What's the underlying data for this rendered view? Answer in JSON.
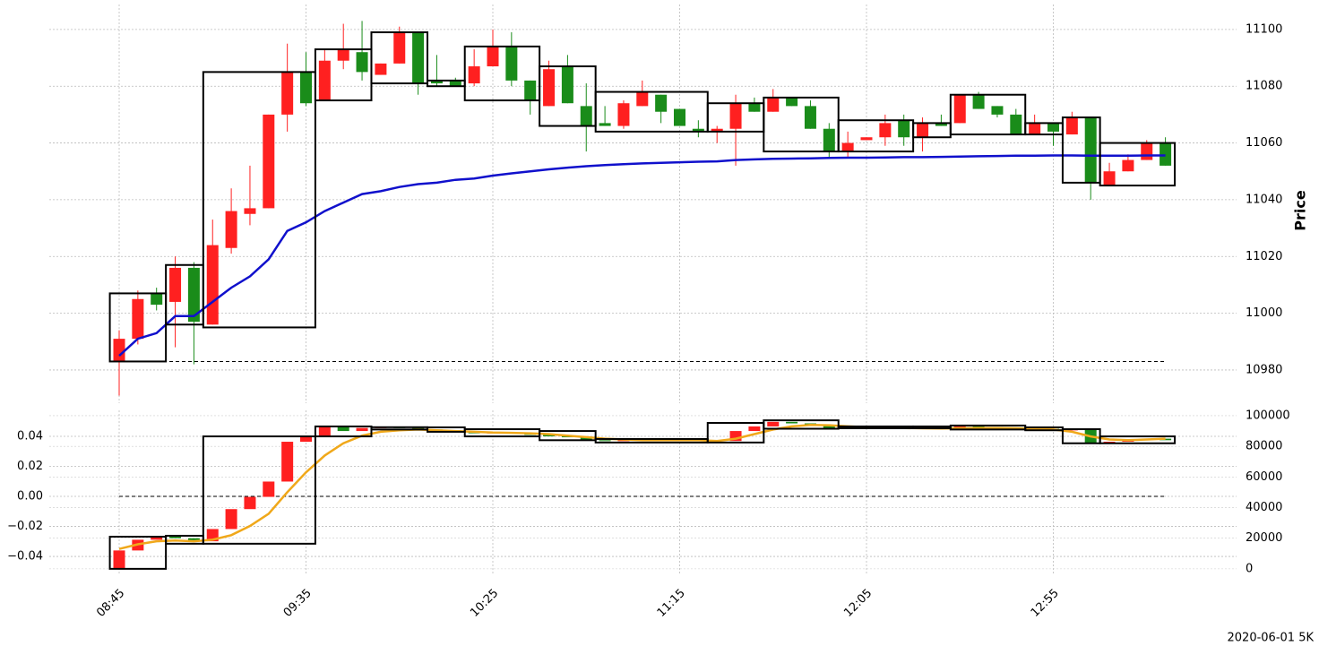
{
  "chart_data": [
    {
      "type": "candlestick",
      "y_label": "Price",
      "y_axis_side": "right",
      "grid": true,
      "up_color": "#ff2020",
      "down_color": "#1a8c1a",
      "box_color": "#000000",
      "ylim": [
        10968.3,
        11108.8
      ],
      "yticks": [
        10980,
        11000,
        11020,
        11040,
        11060,
        11080,
        11100
      ],
      "reference_line": 10983,
      "open": [
        10983,
        10991,
        11007,
        11004,
        11016,
        10996,
        11023,
        11035,
        11037,
        11070,
        11085,
        11075,
        11089,
        11092,
        11084,
        11088,
        11099,
        11082,
        11082,
        11081,
        11087,
        11094,
        11082,
        11073,
        11087,
        11073,
        11067,
        11066,
        11073,
        11077,
        11072,
        11065,
        11064,
        11065,
        11074,
        11071,
        11076,
        11073,
        11065,
        11057,
        11061,
        11062,
        11068,
        11062,
        11067,
        11067,
        11077,
        11073,
        11070,
        11063,
        11067,
        11063,
        11069,
        11045,
        11050,
        11054,
        11060
      ],
      "high": [
        10994,
        11008,
        11009,
        11020,
        11018,
        11033,
        11044,
        11052,
        11070,
        11095,
        11092,
        11093,
        11102,
        11103,
        11088,
        11101,
        11099,
        11091,
        11083,
        11093,
        11100,
        11099,
        11082,
        11089,
        11091,
        11081,
        11073,
        11075,
        11082,
        11077,
        11072,
        11068,
        11066,
        11077,
        11076,
        11079,
        11076,
        11075,
        11067,
        11064,
        11062,
        11070,
        11070,
        11069,
        11070,
        11077,
        11078,
        11073,
        11072,
        11070,
        11067,
        11071,
        11069,
        11053,
        11056,
        11061,
        11062
      ],
      "low": [
        10971,
        10989,
        11001,
        10988,
        10982,
        10996,
        11021,
        11031,
        11037,
        11064,
        11073,
        11075,
        11086,
        11082,
        11084,
        11088,
        11077,
        11080,
        11080,
        11080,
        11087,
        11080,
        11070,
        11073,
        11074,
        11057,
        11066,
        11065,
        11073,
        11067,
        11066,
        11062,
        11060,
        11052,
        11071,
        11071,
        11073,
        11065,
        11055,
        11055,
        11061,
        11059,
        11059,
        11057,
        11066,
        11067,
        11072,
        11069,
        11063,
        11063,
        11059,
        11063,
        11040,
        11045,
        11050,
        11054,
        11052
      ],
      "close": [
        10991,
        11005,
        11003,
        11016,
        10997,
        11024,
        11036,
        11037,
        11070,
        11085,
        11074,
        11089,
        11093,
        11085,
        11088,
        11099,
        11081,
        11081,
        11080,
        11087,
        11094,
        11082,
        11075,
        11086,
        11074,
        11066,
        11066,
        11074,
        11078,
        11071,
        11066,
        11064,
        11065,
        11074,
        11071,
        11076,
        11073,
        11065,
        11057,
        11060,
        11062,
        11067,
        11062,
        11067,
        11066,
        11077,
        11072,
        11070,
        11063,
        11067,
        11064,
        11069,
        11046,
        11050,
        11054,
        11060,
        11052
      ],
      "line": {
        "color": "#1010cc",
        "values": [
          10985,
          10991,
          10993,
          10999,
          10999,
          11004,
          11009,
          11013,
          11019,
          11029,
          11032,
          11036,
          11039,
          11042,
          11043,
          11044.5,
          11045.5,
          11046,
          11047,
          11047.5,
          11048.5,
          11049.3,
          11050,
          11050.7,
          11051.3,
          11051.8,
          11052.2,
          11052.5,
          11052.8,
          11053,
          11053.2,
          11053.4,
          11053.5,
          11054,
          11054.2,
          11054.4,
          11054.5,
          11054.6,
          11054.7,
          11054.8,
          11054.8,
          11054.9,
          11055,
          11055,
          11055.1,
          11055.2,
          11055.3,
          11055.4,
          11055.5,
          11055.5,
          11055.6,
          11055.6,
          11055.5,
          11055.5,
          11055.5,
          11055.6,
          11055.6
        ]
      },
      "boxes": [
        {
          "start": 0,
          "end": 2,
          "high": 11007,
          "low": 10983
        },
        {
          "start": 3,
          "end": 4,
          "high": 11017,
          "low": 10996
        },
        {
          "start": 5,
          "end": 10,
          "high": 11085,
          "low": 10995
        },
        {
          "start": 11,
          "end": 13,
          "high": 11093,
          "low": 11075
        },
        {
          "start": 14,
          "end": 16,
          "high": 11099,
          "low": 11081
        },
        {
          "start": 17,
          "end": 18,
          "high": 11082,
          "low": 11080
        },
        {
          "start": 19,
          "end": 22,
          "high": 11094,
          "low": 11075
        },
        {
          "start": 23,
          "end": 25,
          "high": 11087,
          "low": 11066
        },
        {
          "start": 26,
          "end": 31,
          "high": 11078,
          "low": 11064
        },
        {
          "start": 32,
          "end": 34,
          "high": 11074,
          "low": 11064
        },
        {
          "start": 35,
          "end": 38,
          "high": 11076,
          "low": 11057
        },
        {
          "start": 39,
          "end": 42,
          "high": 11068,
          "low": 11057
        },
        {
          "start": 43,
          "end": 44,
          "high": 11067,
          "low": 11062
        },
        {
          "start": 45,
          "end": 48,
          "high": 11077,
          "low": 11063
        },
        {
          "start": 49,
          "end": 50,
          "high": 11067,
          "low": 11063
        },
        {
          "start": 51,
          "end": 52,
          "high": 11069,
          "low": 11046
        },
        {
          "start": 53,
          "end": 56,
          "high": 11060,
          "low": 11045
        }
      ]
    },
    {
      "type": "candlestick",
      "axis": "y2",
      "grid": true,
      "annotation": "2020-06-01 5K",
      "up_color": "#ff2020",
      "down_color": "#1a8c1a",
      "box_color": "#000000",
      "categories": [
        "08:45",
        null,
        null,
        null,
        null,
        null,
        null,
        null,
        null,
        null,
        "09:35",
        null,
        null,
        null,
        null,
        null,
        null,
        null,
        null,
        null,
        "10:25",
        null,
        null,
        null,
        null,
        null,
        null,
        null,
        null,
        null,
        "11:15",
        null,
        null,
        null,
        null,
        null,
        null,
        null,
        null,
        null,
        "12:05",
        null,
        null,
        null,
        null,
        null,
        null,
        null,
        null,
        null,
        "12:55",
        null,
        null,
        null,
        null,
        null,
        null
      ],
      "ylim": [
        -0.0513,
        0.0573
      ],
      "yticks": [
        {
          "value": -0.04,
          "label": "−0.04"
        },
        {
          "value": -0.02,
          "label": "−0.02"
        },
        {
          "value": 0,
          "label": "0.00"
        },
        0.02,
        0.04
      ],
      "y2lim": [
        -3000,
        103500
      ],
      "y2ticks": [
        0,
        20000,
        40000,
        60000,
        80000,
        100000
      ],
      "reference_line": 0,
      "open": [
        0,
        12000,
        19000,
        21000,
        20000,
        18000,
        26000,
        39000,
        47000,
        57000,
        83000,
        86500,
        93000,
        90000,
        92000,
        92500,
        92000,
        91000,
        90500,
        90000,
        88500,
        89000,
        88500,
        87500,
        86500,
        86000,
        84000,
        83500,
        84000,
        84500,
        84000,
        84000,
        84200,
        83500,
        90000,
        93000,
        96000,
        95000,
        94000,
        91500,
        92000,
        92200,
        92500,
        92000,
        92300,
        92000,
        93000,
        92500,
        92200,
        91000,
        91500,
        90500,
        91000,
        82000,
        83000,
        84000,
        85000
      ],
      "close": [
        12000,
        19000,
        21000,
        20000,
        18000,
        26000,
        39000,
        47000,
        57000,
        83000,
        86500,
        93000,
        90000,
        92000,
        92500,
        92000,
        91000,
        90500,
        90000,
        88500,
        89000,
        88500,
        87500,
        86500,
        86000,
        84000,
        83500,
        84000,
        84500,
        84000,
        84000,
        84200,
        83500,
        90000,
        93000,
        96000,
        95000,
        94000,
        91500,
        92000,
        92200,
        92500,
        92000,
        92300,
        92000,
        93000,
        92500,
        92200,
        91000,
        91500,
        90500,
        91000,
        82000,
        83000,
        84000,
        85000,
        84000
      ],
      "line": {
        "color": "#f0a81a",
        "axis": "y2",
        "values": [
          13000,
          16000,
          18000,
          18500,
          18000,
          19000,
          22000,
          28000,
          36000,
          50000,
          63000,
          74000,
          82000,
          87000,
          89500,
          90500,
          91000,
          90500,
          90000,
          89500,
          89000,
          88800,
          88500,
          88000,
          87000,
          86000,
          85000,
          84500,
          84000,
          84000,
          84000,
          84000,
          83500,
          85000,
          88000,
          91000,
          93000,
          94000,
          93800,
          93000,
          92500,
          92200,
          92000,
          91800,
          91700,
          91800,
          92000,
          92000,
          91800,
          91500,
          91000,
          89500,
          86500,
          84500,
          84000,
          84500,
          85000
        ]
      },
      "boxes": [
        {
          "start": 0,
          "end": 2,
          "high": 21000,
          "low": 0
        },
        {
          "start": 3,
          "end": 4,
          "high": 21600,
          "low": 16400
        },
        {
          "start": 5,
          "end": 10,
          "high": 86500,
          "low": 16400
        },
        {
          "start": 11,
          "end": 13,
          "high": 93000,
          "low": 86500
        },
        {
          "start": 14,
          "end": 16,
          "high": 92500,
          "low": 91000
        },
        {
          "start": 17,
          "end": 18,
          "high": 92400,
          "low": 89500
        },
        {
          "start": 19,
          "end": 22,
          "high": 91200,
          "low": 86500
        },
        {
          "start": 23,
          "end": 25,
          "high": 90000,
          "low": 84000
        },
        {
          "start": 26,
          "end": 31,
          "high": 84800,
          "low": 82500
        },
        {
          "start": 32,
          "end": 34,
          "high": 95300,
          "low": 82500
        },
        {
          "start": 35,
          "end": 38,
          "high": 97000,
          "low": 91500
        },
        {
          "start": 39,
          "end": 42,
          "high": 93000,
          "low": 91800
        },
        {
          "start": 43,
          "end": 44,
          "high": 93000,
          "low": 91800
        },
        {
          "start": 45,
          "end": 48,
          "high": 93600,
          "low": 91000
        },
        {
          "start": 49,
          "end": 50,
          "high": 92400,
          "low": 90500
        },
        {
          "start": 51,
          "end": 52,
          "high": 91200,
          "low": 82000
        },
        {
          "start": 53,
          "end": 56,
          "high": 86500,
          "low": 82000
        }
      ]
    }
  ]
}
